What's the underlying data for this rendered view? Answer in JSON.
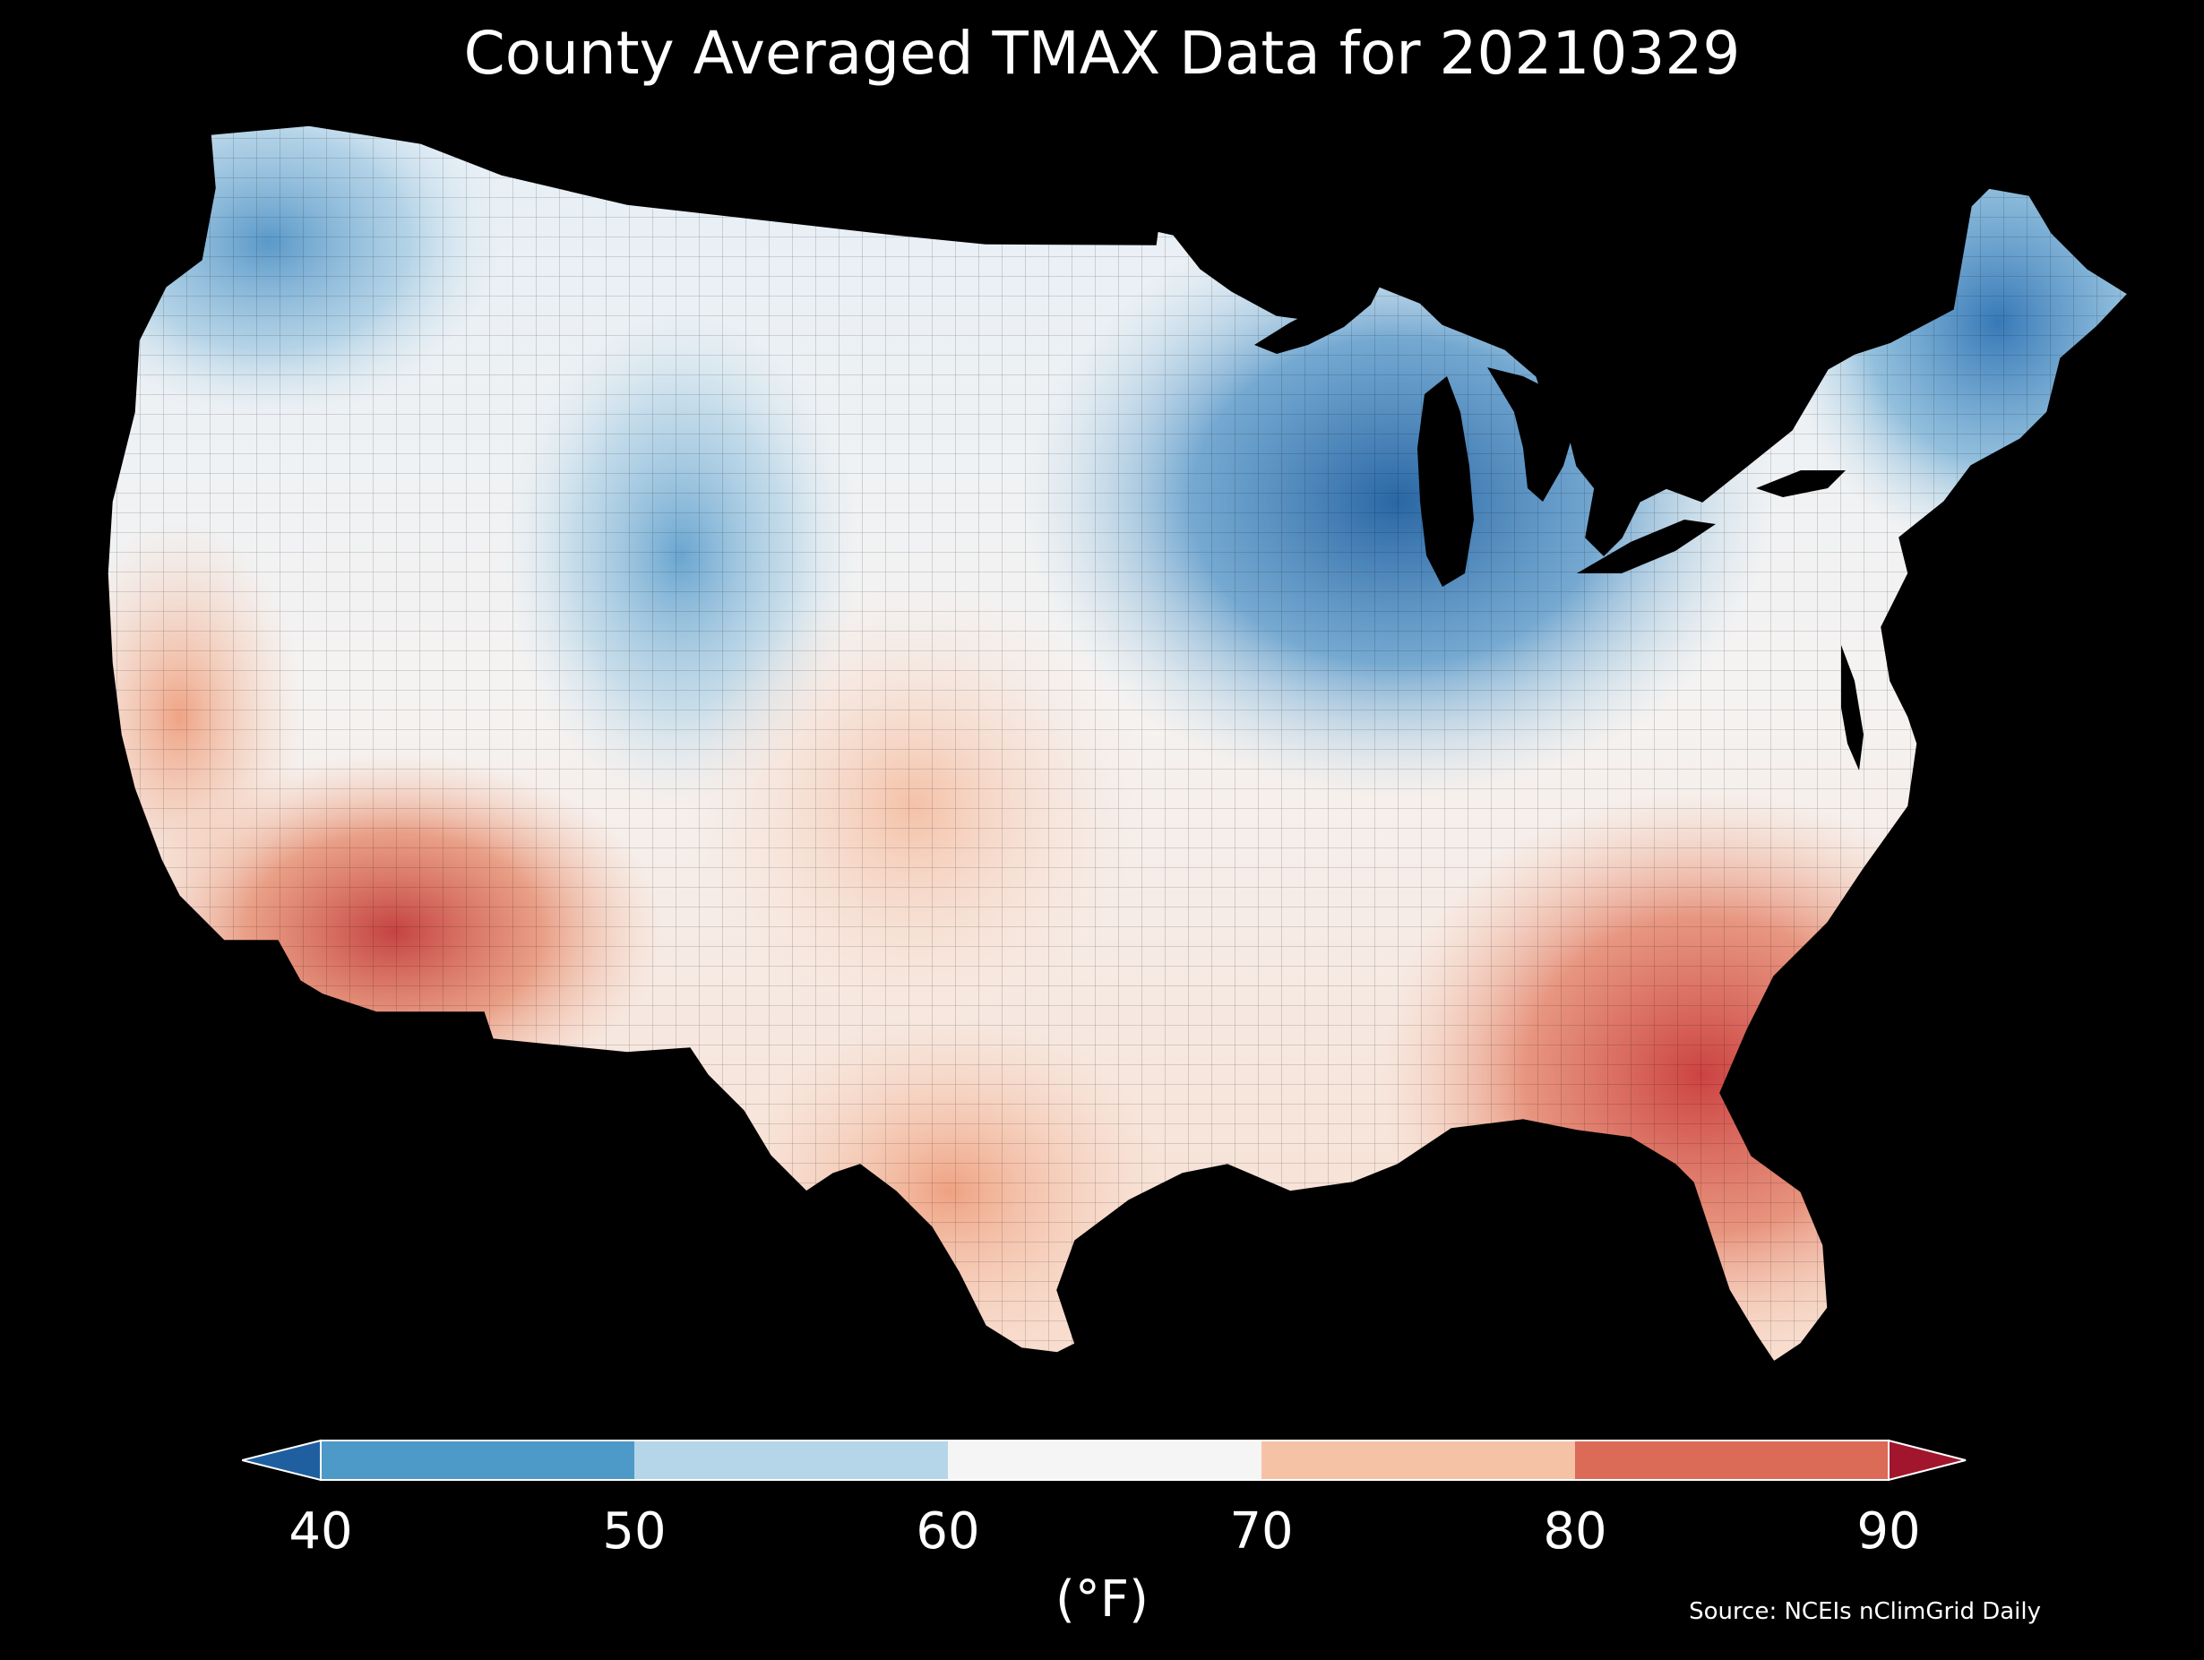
{
  "title": "County Averaged TMAX Data for 20210329",
  "colorbar": {
    "ticks": [
      "40",
      "50",
      "60",
      "70",
      "80",
      "90"
    ],
    "label": "(°F)",
    "bins": [
      {
        "range": [
          40,
          50
        ],
        "color": "#4d99c8"
      },
      {
        "range": [
          50,
          60
        ],
        "color": "#b5d6e8"
      },
      {
        "range": [
          60,
          70
        ],
        "color": "#f5f5f5"
      },
      {
        "range": [
          70,
          80
        ],
        "color": "#f6c2a6"
      },
      {
        "range": [
          80,
          90
        ],
        "color": "#db6b57"
      }
    ],
    "under_color": "#1f5fa0",
    "over_color": "#a1162c"
  },
  "source": "Source: NCEIs nClimGrid Daily",
  "colors": {
    "background": "#000000",
    "text": "#ffffff",
    "cold_deep": "#2166ac",
    "cold": "#67a9cf",
    "cool": "#d1e5f0",
    "neutral": "#f7f7f7",
    "warm": "#fddbc7",
    "hot": "#ef8a62",
    "hot_deep": "#b2182b"
  }
}
